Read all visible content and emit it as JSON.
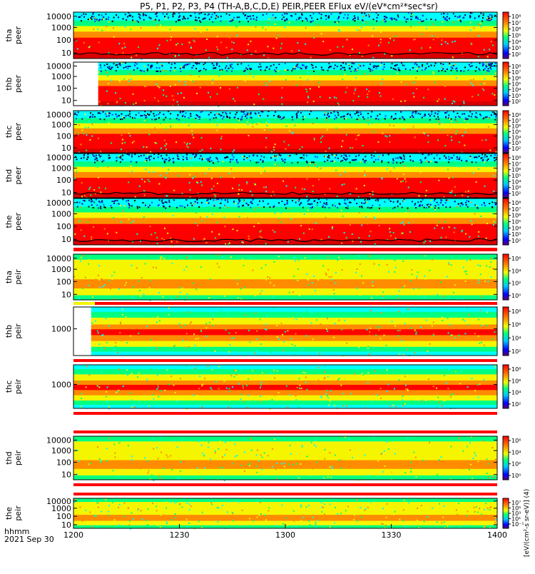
{
  "title": "P5, P1, P2, P3, P4 (TH-A,B,C,D,E) PEIR,PEER EFlux eV/(eV*cm²*sec*sr)",
  "x_tick_labels": [
    "1200",
    "1230",
    "1300",
    "1330",
    "1400"
  ],
  "x_label_unit": "hhmm",
  "x_label_date": "2021 Sep 30",
  "colorbar_unit": "[eV/(cm²-s sr-eV)] (4)",
  "colors": {
    "red": "#ff0000",
    "dark_red": "#d80000",
    "orange": "#ff8c00",
    "yellow": "#f5f500",
    "green": "#00ff80",
    "cyan": "#00ffff",
    "blue": "#0040ff",
    "navy": "#000080",
    "black": "#000000"
  },
  "chart_data": [
    {
      "type": "heatmap",
      "probe": "tha",
      "species": "peer",
      "ylabel_1": "tha",
      "ylabel_2": "peer",
      "y_scale": "log",
      "y_tick_labels": [
        "10000",
        "1000",
        "100",
        "10"
      ],
      "data_start": "1200",
      "colorbar_tick_labels": [
        "10⁸",
        "10⁷",
        "10⁶",
        "10⁵",
        "10⁴",
        "10³",
        "10²"
      ]
    },
    {
      "type": "heatmap",
      "probe": "thb",
      "species": "peer",
      "ylabel_1": "thb",
      "ylabel_2": "peer",
      "y_scale": "log",
      "y_tick_labels": [
        "10000",
        "1000",
        "100",
        "10"
      ],
      "data_start": "1207",
      "colorbar_tick_labels": [
        "10⁸",
        "10⁷",
        "10⁶",
        "10⁵",
        "10⁴",
        "10³",
        "10²"
      ]
    },
    {
      "type": "heatmap",
      "probe": "thc",
      "species": "peer",
      "ylabel_1": "thc",
      "ylabel_2": "peer",
      "y_scale": "log",
      "y_tick_labels": [
        "10000",
        "1000",
        "100",
        "10"
      ],
      "data_start": "1200",
      "colorbar_tick_labels": [
        "10⁸",
        "10⁷",
        "10⁶",
        "10⁵",
        "10⁴",
        "10³",
        "10²"
      ]
    },
    {
      "type": "heatmap",
      "probe": "thd",
      "species": "peer",
      "ylabel_1": "thd",
      "ylabel_2": "peer",
      "y_scale": "log",
      "y_tick_labels": [
        "10000",
        "1000",
        "100",
        "10"
      ],
      "data_start": "1200",
      "colorbar_tick_labels": [
        "10⁸",
        "10⁷",
        "10⁶",
        "10⁵",
        "10⁴",
        "10³",
        "10²"
      ]
    },
    {
      "type": "heatmap",
      "probe": "the",
      "species": "peer",
      "ylabel_1": "the",
      "ylabel_2": "peer",
      "y_scale": "log",
      "y_tick_labels": [
        "10000",
        "1000",
        "100",
        "10"
      ],
      "data_start": "1200",
      "colorbar_tick_labels": [
        "10⁸",
        "10⁷",
        "10⁶",
        "10⁵",
        "10⁴",
        "10³",
        "10²"
      ]
    },
    {
      "type": "heatmap",
      "probe": "tha",
      "species": "peir",
      "ylabel_1": "tha",
      "ylabel_2": "peir",
      "y_scale": "log",
      "y_tick_labels": [
        "10000",
        "1000",
        "100",
        "10"
      ],
      "data_start": "1200",
      "colorbar_tick_labels": [
        "10⁶",
        "10⁴",
        "10²",
        "10⁰"
      ]
    },
    {
      "type": "heatmap",
      "probe": "thb",
      "species": "peir",
      "ylabel_1": "thb",
      "ylabel_2": "peir",
      "y_scale": "log",
      "y_tick_labels": [
        "1000"
      ],
      "data_start": "1205",
      "colorbar_tick_labels": [
        "10⁸",
        "10⁶",
        "10⁴",
        "10²"
      ]
    },
    {
      "type": "heatmap",
      "probe": "thc",
      "species": "peir",
      "ylabel_1": "thc",
      "ylabel_2": "peir",
      "y_scale": "log",
      "y_tick_labels": [
        "1000"
      ],
      "data_start": "1200",
      "colorbar_tick_labels": [
        "10⁸",
        "10⁶",
        "10⁴",
        "10²"
      ]
    },
    {
      "type": "heatmap",
      "probe": "thd",
      "species": "peir",
      "ylabel_1": "thd",
      "ylabel_2": "peir",
      "y_scale": "log",
      "y_tick_labels": [
        "10000",
        "1000",
        "100",
        "10"
      ],
      "data_start": "1200",
      "colorbar_tick_labels": [
        "10⁶",
        "10⁴",
        "10²",
        "10⁰"
      ]
    },
    {
      "type": "heatmap",
      "probe": "the",
      "species": "peir",
      "ylabel_1": "the",
      "ylabel_2": "peir",
      "y_scale": "log",
      "y_tick_labels": [
        "10000",
        "1000",
        "100",
        "10"
      ],
      "data_start": "1200",
      "colorbar_tick_labels": [
        "10⁷",
        "10⁵",
        "10³",
        "10¹",
        "10⁻¹"
      ]
    }
  ]
}
